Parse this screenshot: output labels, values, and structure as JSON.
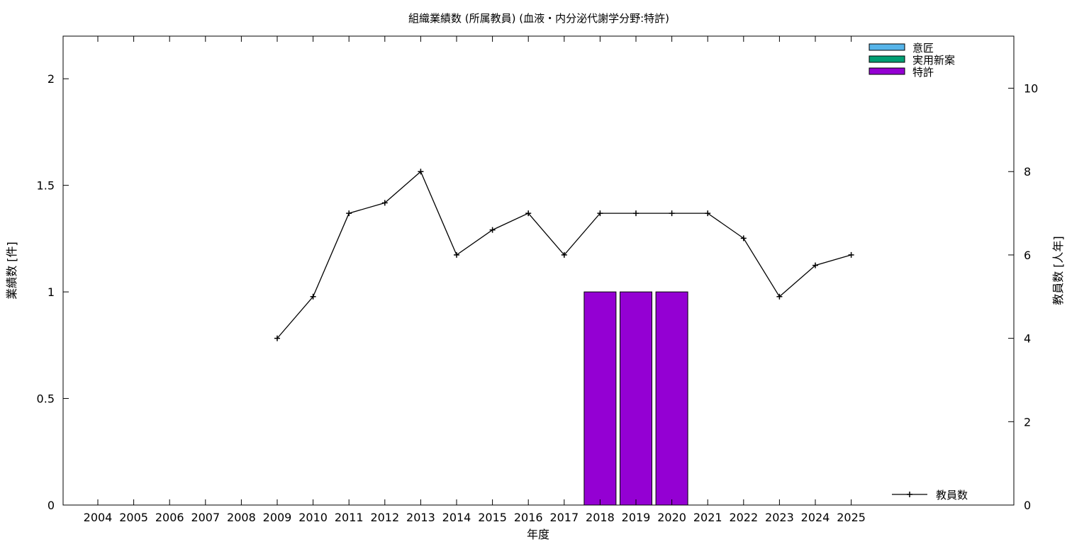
{
  "chart_data": {
    "type": "bar",
    "title": "組織業績数 (所属教員) (血液・内分泌代謝学分野:特許)",
    "xlabel": "年度",
    "ylabel": "業績数 [件]",
    "y2label": "教員数 [人年]",
    "categories": [
      "2004",
      "2005",
      "2006",
      "2007",
      "2008",
      "2009",
      "2010",
      "2011",
      "2012",
      "2013",
      "2014",
      "2015",
      "2016",
      "2017",
      "2018",
      "2019",
      "2020",
      "2021",
      "2022",
      "2023",
      "2024",
      "2025"
    ],
    "ylim": [
      0,
      2.2
    ],
    "y2lim": [
      0,
      11.25
    ],
    "yticks": [
      "0",
      "0.5",
      "1",
      "1.5",
      "2"
    ],
    "y2ticks": [
      "0",
      "2",
      "4",
      "6",
      "8",
      "10"
    ],
    "grid": false,
    "legend_placement": "top-right",
    "series": [
      {
        "name": "意匠",
        "kind": "bar",
        "color": "#56b4e9",
        "values": [
          0,
          0,
          0,
          0,
          0,
          0,
          0,
          0,
          0,
          0,
          0,
          0,
          0,
          0,
          0,
          0,
          0,
          0,
          0,
          0,
          0,
          0
        ]
      },
      {
        "name": "実用新案",
        "kind": "bar",
        "color": "#009e73",
        "values": [
          0,
          0,
          0,
          0,
          0,
          0,
          0,
          0,
          0,
          0,
          0,
          0,
          0,
          0,
          0,
          0,
          0,
          0,
          0,
          0,
          0,
          0
        ]
      },
      {
        "name": "特許",
        "kind": "bar",
        "color": "#9400d3",
        "values": [
          0,
          0,
          0,
          0,
          0,
          0,
          0,
          0,
          0,
          0,
          0,
          0,
          0,
          0,
          1,
          1,
          1,
          0,
          0,
          0,
          0,
          0
        ]
      },
      {
        "name": "教員数",
        "kind": "line",
        "axis": "y2",
        "color": "#000000",
        "values": [
          null,
          null,
          null,
          null,
          null,
          4,
          5,
          7,
          7.25,
          8,
          6,
          6.6,
          7,
          6,
          7,
          7,
          7,
          7,
          6.4,
          5,
          5.75,
          6
        ]
      }
    ]
  }
}
